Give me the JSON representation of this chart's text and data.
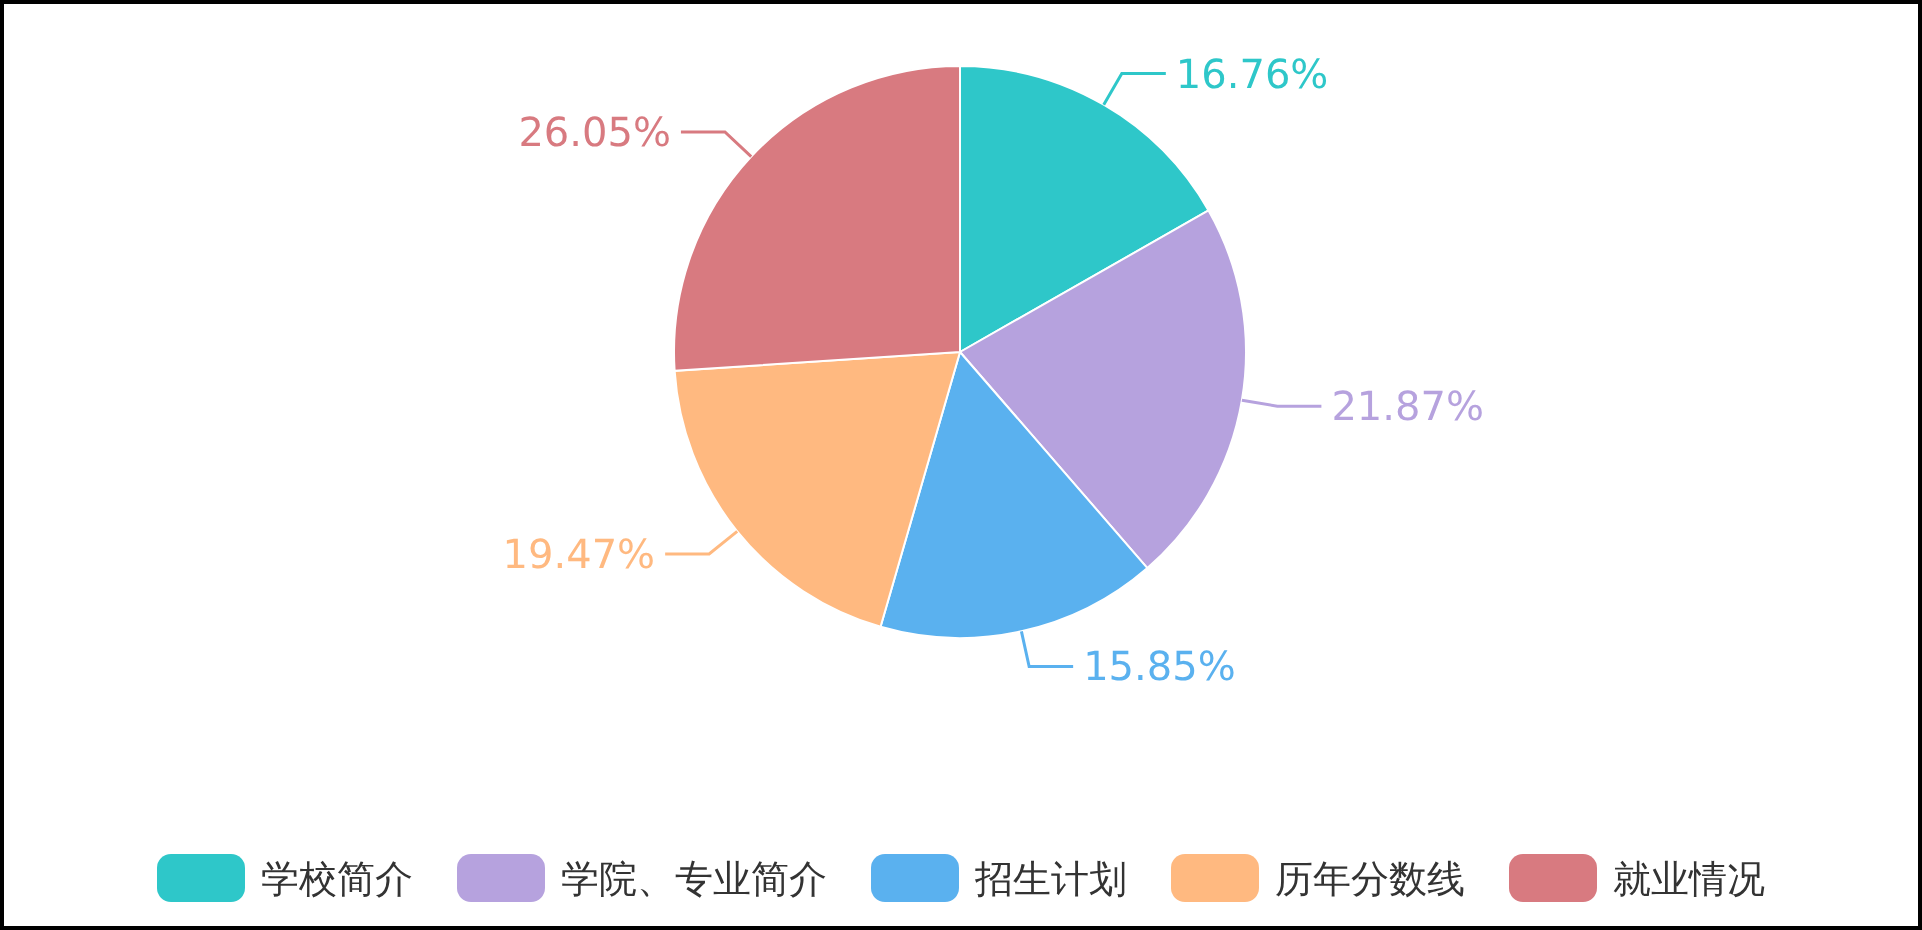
{
  "chart_data": {
    "type": "pie",
    "categories": [
      "学校简介",
      "学院、专业简介",
      "招生计划",
      "历年分数线",
      "就业情况"
    ],
    "values": [
      16.76,
      21.87,
      15.85,
      19.47,
      26.05
    ],
    "value_labels": [
      "16.76%",
      "21.87%",
      "15.85%",
      "19.47%",
      "26.05%"
    ],
    "colors": [
      "#2ec7c9",
      "#b6a2de",
      "#5ab1ef",
      "#ffb980",
      "#d87a80"
    ],
    "legend": "bottom"
  }
}
